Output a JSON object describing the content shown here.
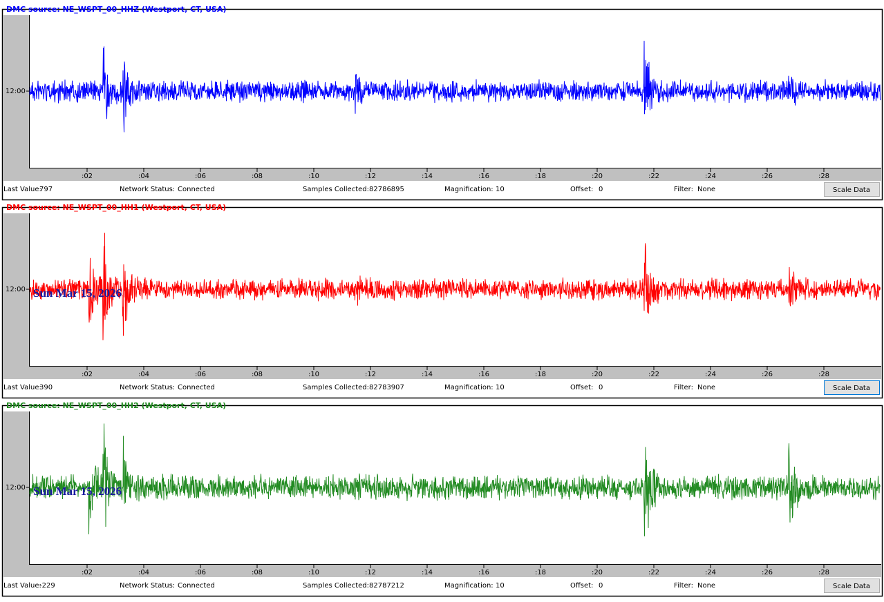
{
  "panels": [
    {
      "title": "DMC source: NE_WSPT_00_HHZ (Westport, CT, USA)",
      "color": "#0000ff",
      "y_label": "12:00",
      "x_ticks": [
        ":02",
        ":04",
        ":06",
        ":08",
        ":10",
        ":12",
        ":14",
        ":16",
        ":18",
        ":20",
        ":22",
        ":24",
        ":26",
        ":28"
      ],
      "status": [
        {
          "label": "Last Value:",
          "value": 797
        },
        {
          "label": "Network Status:",
          "value": "Connected"
        },
        {
          "label": "Samples Collected:",
          "value": 82786895
        },
        {
          "label": "Magnification:",
          "value": 10
        },
        {
          "label": "Offset:",
          "value": 0
        },
        {
          "label": "Filter:",
          "value": "None"
        }
      ],
      "button": "Scale Data"
    },
    {
      "title": "DMC source: NE_WSPT_00_HH1 (Westport, CT, USA)",
      "color": "#ff0000",
      "y_label": "12:00",
      "date": "Sun Mar 15, 2026",
      "x_ticks": [
        ":02",
        ":04",
        ":06",
        ":08",
        ":10",
        ":12",
        ":14",
        ":16",
        ":18",
        ":20",
        ":22",
        ":24",
        ":26",
        ":28"
      ],
      "status": [
        {
          "label": "Last Value:",
          "value": 390
        },
        {
          "label": "Network Status:",
          "value": "Connected"
        },
        {
          "label": "Samples Collected:",
          "value": 82783907
        },
        {
          "label": "Magnification:",
          "value": 10
        },
        {
          "label": "Offset:",
          "value": 0
        },
        {
          "label": "Filter:",
          "value": "None"
        }
      ],
      "button": "Scale Data"
    },
    {
      "title": "DMC source: NE_WSPT_00_HH2 (Westport, CT, USA)",
      "color": "#228b22",
      "y_label": "12:00",
      "date": "Sun Mar 15, 2026",
      "x_ticks": [
        ":02",
        ":04",
        ":06",
        ":08",
        ":10",
        ":12",
        ":14",
        ":16",
        ":18",
        ":20",
        ":22",
        ":24",
        ":26",
        ":28"
      ],
      "status": [
        {
          "label": "Last Value:",
          "value": -229
        },
        {
          "label": "Network Status:",
          "value": "Connected"
        },
        {
          "label": "Samples Collected:",
          "value": 82787212
        },
        {
          "label": "Magnification:",
          "value": 10
        },
        {
          "label": "Offset:",
          "value": 0
        },
        {
          "label": "Filter:",
          "value": "None"
        }
      ],
      "button": "Scale Data"
    }
  ]
}
